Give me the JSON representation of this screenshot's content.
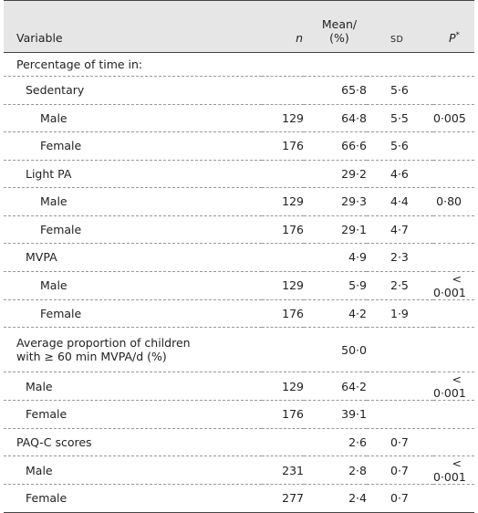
{
  "header": {
    "variable": "Variable",
    "n": "n",
    "mean": "Mean/",
    "mean_2": "(%)",
    "sd": "SD",
    "p": "P",
    "p_mark": "*"
  },
  "rows": [
    {
      "variable": "Percentage of time in:"
    },
    {
      "variable": "Sedentary",
      "mean": "65·8",
      "sd": "5·6"
    },
    {
      "variable": "Male",
      "n": "129",
      "mean": "64·8",
      "sd": "5·5",
      "p": "0·005"
    },
    {
      "variable": "Female",
      "n": "176",
      "mean": "66·6",
      "sd": "5·6"
    },
    {
      "variable": "Light PA",
      "mean": "29·2",
      "sd": "4·6"
    },
    {
      "variable": "Male",
      "n": "129",
      "mean": "29·3",
      "sd": "4·4",
      "p": "0·80"
    },
    {
      "variable": "Female",
      "n": "176",
      "mean": "29·1",
      "sd": "4·7"
    },
    {
      "variable": "MVPA",
      "mean": "4·9",
      "sd": "2·3"
    },
    {
      "variable": "Male",
      "n": "129",
      "mean": "5·9",
      "sd": "2·5",
      "p": "< 0·001"
    },
    {
      "variable": "Female",
      "n": "176",
      "mean": "4·2",
      "sd": "1·9"
    },
    {
      "variable": "Average proportion of children",
      "variable_2": "with ≥ 60 min MVPA/d (%)",
      "mean": "50·0"
    },
    {
      "variable": "Male",
      "n": "129",
      "mean": "64·2",
      "p": "< 0·001"
    },
    {
      "variable": "Female",
      "n": "176",
      "mean": "39·1"
    },
    {
      "variable": "PAQ-C scores",
      "mean": "2·6",
      "sd": "0·7"
    },
    {
      "variable": "Male",
      "n": "231",
      "mean": "2·8",
      "sd": "0·7",
      "p": "< 0·001"
    },
    {
      "variable": "Female",
      "n": "277",
      "mean": "2·4",
      "sd": "0·7"
    }
  ]
}
